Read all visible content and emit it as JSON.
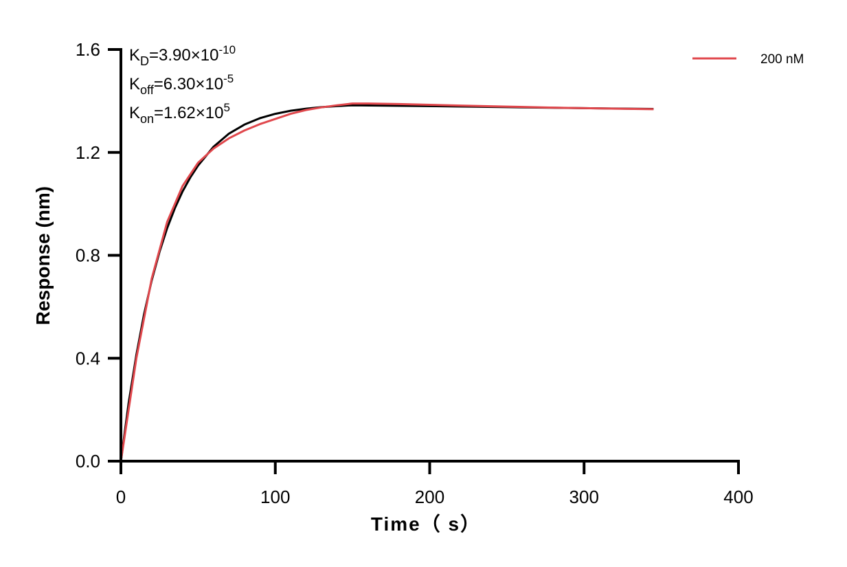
{
  "chart_data": {
    "type": "line",
    "title": "",
    "xlabel": "Time（ s）",
    "ylabel": "Response (nm)",
    "xlim": [
      0,
      400
    ],
    "ylim": [
      0,
      1.6
    ],
    "xticks": [
      "0",
      "100",
      "200",
      "300",
      "400"
    ],
    "yticks": [
      "0.0",
      "0.4",
      "0.8",
      "1.2",
      "1.6"
    ],
    "grid": false,
    "legend_position": "top-right",
    "annotations": [
      {
        "base": "K",
        "sub": "D",
        "text": "=3.90×10",
        "sup": "-10"
      },
      {
        "base": "K",
        "sub": "off",
        "text": "=6.30×10",
        "sup": "-5"
      },
      {
        "base": "K",
        "sub": "on",
        "text": "=1.62×10",
        "sup": "5"
      }
    ],
    "series": [
      {
        "name": "200 nM",
        "color": "#e0474c",
        "x": [
          0,
          10,
          20,
          30,
          40,
          50,
          60,
          70,
          80,
          90,
          100,
          110,
          120,
          130,
          140,
          150,
          160,
          180,
          200,
          220,
          250,
          280,
          300,
          320,
          345
        ],
        "y": [
          0,
          0.4,
          0.71,
          0.93,
          1.07,
          1.16,
          1.215,
          1.255,
          1.285,
          1.31,
          1.33,
          1.35,
          1.365,
          1.375,
          1.383,
          1.39,
          1.39,
          1.388,
          1.385,
          1.382,
          1.378,
          1.374,
          1.372,
          1.37,
          1.368
        ]
      },
      {
        "color": "#000000",
        "x": [
          0,
          5,
          10,
          15,
          20,
          25,
          30,
          35,
          40,
          45,
          50,
          60,
          70,
          80,
          90,
          100,
          110,
          120,
          130,
          140,
          150,
          200,
          250,
          300,
          345
        ],
        "y": [
          0,
          0.225,
          0.413,
          0.571,
          0.703,
          0.813,
          0.906,
          0.984,
          1.049,
          1.103,
          1.149,
          1.222,
          1.273,
          1.308,
          1.333,
          1.35,
          1.362,
          1.37,
          1.376,
          1.38,
          1.383,
          1.38,
          1.376,
          1.372,
          1.369
        ]
      }
    ]
  }
}
